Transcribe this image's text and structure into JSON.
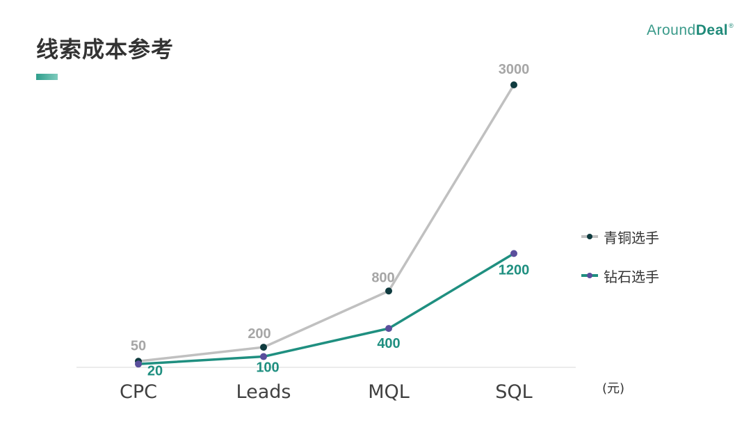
{
  "header": {
    "title": "线索成本参考",
    "brand_light": "Around",
    "brand_bold": "Deal",
    "brand_mark": "®"
  },
  "chart_data": {
    "type": "line",
    "categories": [
      "CPC",
      "Leads",
      "MQL",
      "SQL"
    ],
    "unit_label": "(元)",
    "series": [
      {
        "name": "青铜选手",
        "values": [
          50,
          200,
          800,
          3000
        ],
        "data_labels": [
          "50",
          "200",
          "800",
          "3000"
        ],
        "line_color": "#c0c0c0",
        "marker_color": "#0f3b3f",
        "label_color": "#a6a6a6"
      },
      {
        "name": "钻石选手",
        "values": [
          20,
          100,
          400,
          1200
        ],
        "data_labels": [
          "20",
          "100",
          "400",
          "1200"
        ],
        "line_color": "#1f8f80",
        "marker_color": "#5a4f9c",
        "label_color": "#1f8f80"
      }
    ],
    "legend_position": "right",
    "grid": false
  }
}
